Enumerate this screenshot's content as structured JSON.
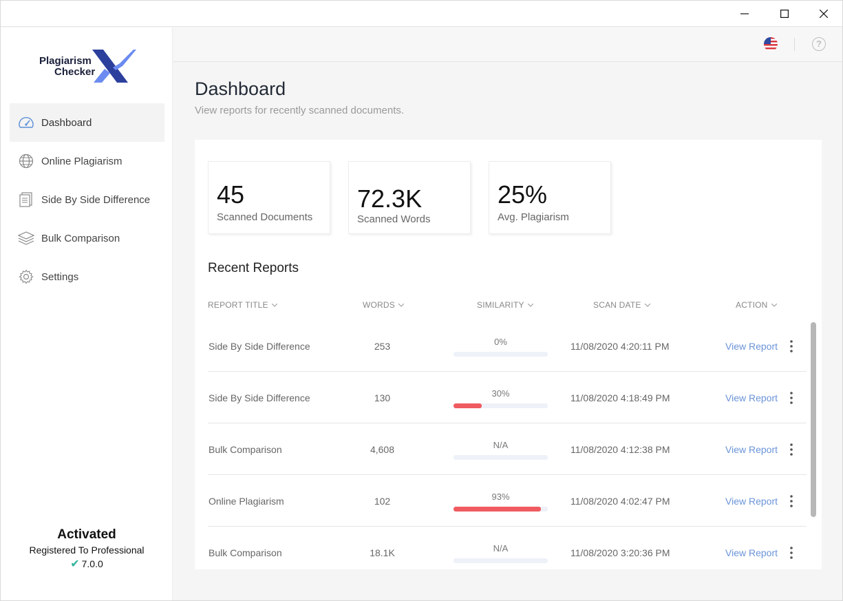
{
  "sidebar": {
    "logo_line1": "Plagiarism",
    "logo_line2": "Checker",
    "items": [
      {
        "label": "Dashboard",
        "icon": "speedometer-icon",
        "active": true
      },
      {
        "label": "Online Plagiarism",
        "icon": "globe-icon"
      },
      {
        "label": "Side By Side Difference",
        "icon": "documents-icon"
      },
      {
        "label": "Bulk Comparison",
        "icon": "layers-icon"
      },
      {
        "label": "Settings",
        "icon": "gear-icon"
      }
    ],
    "activation": {
      "status": "Activated",
      "registered": "Registered To Professional",
      "version": "7.0.0"
    }
  },
  "header": {
    "language_icon": "us-flag-icon",
    "help_icon": "help-icon",
    "help_glyph": "?"
  },
  "main": {
    "title": "Dashboard",
    "subtitle": "View reports for recently scanned documents.",
    "stats": [
      {
        "value": "45",
        "label": "Scanned Documents"
      },
      {
        "value": "72.3K",
        "label": "Scanned Words"
      },
      {
        "value": "25%",
        "label": "Avg. Plagiarism"
      }
    ],
    "recent_title": "Recent Reports",
    "columns": {
      "title": "REPORT TITLE",
      "words": "WORDS",
      "similarity": "SIMILARITY",
      "date": "SCAN DATE",
      "action": "ACTION"
    },
    "rows": [
      {
        "title": "Side By Side Difference",
        "words": "253",
        "similarity": "0%",
        "fill": 0,
        "date": "11/08/2020 4:20:11 PM",
        "action": "View Report"
      },
      {
        "title": "Side By Side Difference",
        "words": "130",
        "similarity": "30%",
        "fill": 30,
        "date": "11/08/2020 4:18:49 PM",
        "action": "View Report"
      },
      {
        "title": "Bulk Comparison",
        "words": "4,608",
        "similarity": "N/A",
        "fill": 0,
        "date": "11/08/2020 4:12:38 PM",
        "action": "View Report"
      },
      {
        "title": "Online Plagiarism",
        "words": "102",
        "similarity": "93%",
        "fill": 93,
        "date": "11/08/2020 4:02:47 PM",
        "action": "View Report"
      },
      {
        "title": "Bulk Comparison",
        "words": "18.1K",
        "similarity": "N/A",
        "fill": 0,
        "date": "11/08/2020 3:20:36 PM",
        "action": "View Report"
      }
    ]
  },
  "colors": {
    "accent_link": "#6a93d8",
    "similarity_bar": "#ef5b60",
    "check": "#2bb39a"
  }
}
